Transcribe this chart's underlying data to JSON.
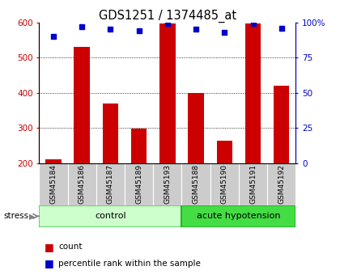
{
  "title": "GDS1251 / 1374485_at",
  "samples": [
    "GSM45184",
    "GSM45186",
    "GSM45187",
    "GSM45189",
    "GSM45193",
    "GSM45188",
    "GSM45190",
    "GSM45191",
    "GSM45192"
  ],
  "counts": [
    210,
    530,
    370,
    298,
    597,
    400,
    263,
    597,
    420
  ],
  "percentiles": [
    90,
    97,
    95,
    94,
    99,
    95,
    93,
    99,
    96
  ],
  "groups": [
    "control",
    "control",
    "control",
    "control",
    "control",
    "acute hypotension",
    "acute hypotension",
    "acute hypotension",
    "acute hypotension"
  ],
  "ylim_left": [
    200,
    600
  ],
  "ylim_right": [
    0,
    100
  ],
  "yticks_left": [
    200,
    300,
    400,
    500,
    600
  ],
  "yticks_right": [
    0,
    25,
    50,
    75,
    100
  ],
  "yticklabels_right": [
    "0",
    "25",
    "50",
    "75",
    "100%"
  ],
  "bar_color": "#cc0000",
  "dot_color": "#0000cc",
  "control_bg": "#ccffcc",
  "control_border": "#55cc55",
  "hypo_bg": "#44dd44",
  "hypo_border": "#22aa22",
  "sample_bg": "#cccccc",
  "bar_width": 0.55
}
